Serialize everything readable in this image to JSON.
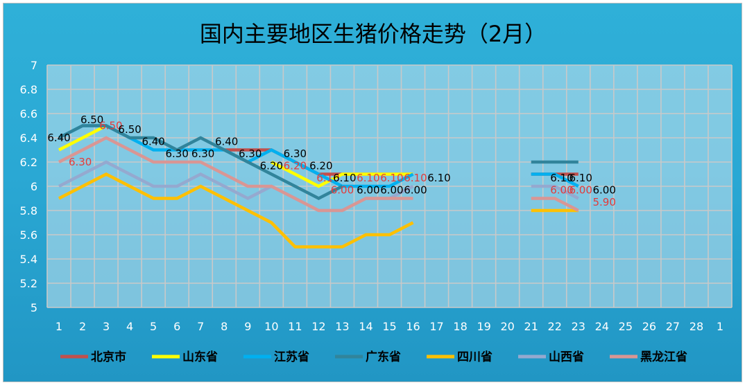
{
  "chart_data": {
    "type": "line",
    "title": "国内主要地区生猪价格走势（2月）",
    "categories": [
      "1",
      "2",
      "3",
      "4",
      "5",
      "6",
      "7",
      "8",
      "9",
      "10",
      "11",
      "12",
      "13",
      "14",
      "15",
      "16",
      "17",
      "18",
      "19",
      "20",
      "21",
      "22",
      "23",
      "24",
      "25",
      "26",
      "27",
      "28",
      "1"
    ],
    "ylim": [
      5,
      7
    ],
    "yticks": [
      "5",
      "5.2",
      "5.4",
      "5.6",
      "5.8",
      "6",
      "6.2",
      "6.4",
      "6.6",
      "6.8",
      "7"
    ],
    "grid": true,
    "legend_position": "bottom",
    "series": [
      {
        "name": "北京市",
        "color": "#c0504d",
        "values": [
          null,
          null,
          null,
          null,
          null,
          null,
          null,
          6.3,
          6.3,
          6.3,
          6.2,
          6.1,
          6.1,
          6.1,
          6.1,
          6.1,
          null,
          null,
          null,
          null,
          6.1,
          6.1,
          6.1,
          null,
          null,
          null,
          null,
          null,
          null
        ]
      },
      {
        "name": "山东省",
        "color": "#ffff00",
        "values": [
          6.3,
          6.4,
          6.5,
          null,
          null,
          null,
          null,
          null,
          null,
          6.2,
          6.1,
          6.0,
          6.1,
          6.1,
          6.1,
          6.1,
          null,
          null,
          null,
          null,
          null,
          null,
          null,
          null,
          null,
          null,
          null,
          null,
          null
        ]
      },
      {
        "name": "江苏省",
        "color": "#00b0f0",
        "values": [
          6.4,
          6.5,
          6.5,
          6.4,
          6.3,
          6.3,
          6.3,
          6.3,
          6.2,
          6.3,
          6.2,
          6.1,
          6.0,
          6.0,
          6.0,
          6.1,
          null,
          null,
          null,
          null,
          6.1,
          6.1,
          6.0,
          null,
          null,
          null,
          null,
          null,
          null
        ]
      },
      {
        "name": "广东省",
        "color": "#31849b",
        "values": [
          6.4,
          6.5,
          6.5,
          6.4,
          6.4,
          6.3,
          6.4,
          6.3,
          6.2,
          6.1,
          6.0,
          5.9,
          6.0,
          null,
          null,
          null,
          null,
          null,
          null,
          null,
          6.2,
          6.2,
          6.2,
          null,
          null,
          null,
          null,
          null,
          null
        ]
      },
      {
        "name": "四川省",
        "color": "#ffc000",
        "values": [
          5.9,
          6.0,
          6.1,
          6.0,
          5.9,
          5.9,
          6.0,
          5.9,
          5.8,
          5.7,
          5.5,
          5.5,
          5.5,
          5.6,
          5.6,
          5.7,
          null,
          null,
          null,
          null,
          5.8,
          5.8,
          5.8,
          null,
          null,
          null,
          null,
          null,
          null
        ]
      },
      {
        "name": "山西省",
        "color": "#95a9cf",
        "values": [
          6.0,
          6.1,
          6.2,
          6.1,
          6.0,
          6.0,
          6.1,
          6.0,
          5.9,
          6.0,
          5.9,
          5.8,
          5.8,
          5.9,
          5.9,
          6.0,
          null,
          null,
          null,
          null,
          6.0,
          6.0,
          5.9,
          null,
          null,
          null,
          null,
          null,
          null
        ]
      },
      {
        "name": "黑龙江省",
        "color": "#d99694",
        "values": [
          6.2,
          6.3,
          6.4,
          6.3,
          6.2,
          6.2,
          6.2,
          6.1,
          6.0,
          6.0,
          5.9,
          5.8,
          5.8,
          5.9,
          5.9,
          5.9,
          null,
          null,
          null,
          null,
          5.9,
          5.9,
          5.8,
          null,
          null,
          null,
          null,
          null,
          null
        ]
      }
    ],
    "data_labels": [
      {
        "text": "6.40",
        "x": 1,
        "y": 6.4,
        "color": "#000000"
      },
      {
        "text": "6.50",
        "x": 2.4,
        "y": 6.55,
        "color": "#000000"
      },
      {
        "text": "6.50",
        "x": 3.2,
        "y": 6.5,
        "color": "#e23b3b"
      },
      {
        "text": "6.50",
        "x": 4,
        "y": 6.47,
        "color": "#000000"
      },
      {
        "text": "6.40",
        "x": 5,
        "y": 6.37,
        "color": "#000000"
      },
      {
        "text": "6.30",
        "x": 1.9,
        "y": 6.2,
        "color": "#e23b3b"
      },
      {
        "text": "6.30",
        "x": 6,
        "y": 6.27,
        "color": "#000000"
      },
      {
        "text": "6.30",
        "x": 7.1,
        "y": 6.27,
        "color": "#000000"
      },
      {
        "text": "6.40",
        "x": 8.1,
        "y": 6.37,
        "color": "#000000"
      },
      {
        "text": "6.30",
        "x": 9.1,
        "y": 6.27,
        "color": "#000000"
      },
      {
        "text": "6.20",
        "x": 10,
        "y": 6.17,
        "color": "#000000"
      },
      {
        "text": "6.20",
        "x": 11,
        "y": 6.17,
        "color": "#e23b3b"
      },
      {
        "text": "6.30",
        "x": 11,
        "y": 6.27,
        "color": "#000000"
      },
      {
        "text": "6.20",
        "x": 12.1,
        "y": 6.17,
        "color": "#000000"
      },
      {
        "text": "6.10",
        "x": 12.4,
        "y": 6.07,
        "color": "#e23b3b"
      },
      {
        "text": "6.10",
        "x": 13.1,
        "y": 6.07,
        "color": "#000000"
      },
      {
        "text": "6.00",
        "x": 13,
        "y": 5.97,
        "color": "#e23b3b"
      },
      {
        "text": "6.10",
        "x": 14.1,
        "y": 6.07,
        "color": "#e23b3b"
      },
      {
        "text": "6.00",
        "x": 14.1,
        "y": 5.97,
        "color": "#000000"
      },
      {
        "text": "6.10",
        "x": 15.1,
        "y": 6.07,
        "color": "#e23b3b"
      },
      {
        "text": "6.00",
        "x": 15.1,
        "y": 5.97,
        "color": "#000000"
      },
      {
        "text": "6.10",
        "x": 16.1,
        "y": 6.07,
        "color": "#e23b3b"
      },
      {
        "text": "6.00",
        "x": 16.1,
        "y": 5.97,
        "color": "#000000"
      },
      {
        "text": "6.10",
        "x": 17.1,
        "y": 6.07,
        "color": "#000000"
      },
      {
        "text": "6.10",
        "x": 22.3,
        "y": 6.07,
        "color": "#000000"
      },
      {
        "text": "6.10",
        "x": 23.1,
        "y": 6.07,
        "color": "#000000"
      },
      {
        "text": "6.00",
        "x": 22.3,
        "y": 5.97,
        "color": "#e23b3b"
      },
      {
        "text": "6.00",
        "x": 23.1,
        "y": 5.97,
        "color": "#e23b3b"
      },
      {
        "text": "6.00",
        "x": 24.1,
        "y": 5.97,
        "color": "#000000"
      },
      {
        "text": "5.90",
        "x": 24.1,
        "y": 5.87,
        "color": "#e23b3b"
      }
    ]
  }
}
